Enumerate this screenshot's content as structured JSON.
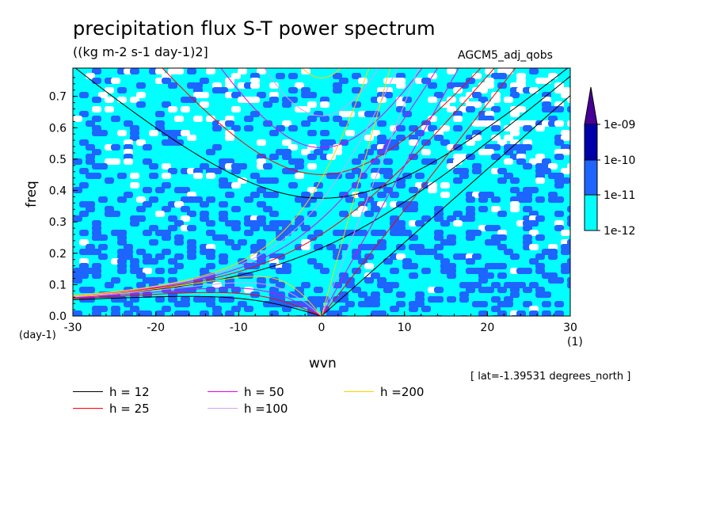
{
  "chart_data": {
    "type": "heatmap",
    "title": "precipitation flux S-T power spectrum",
    "units": "((kg m-2 s-1 day-1)2]",
    "experiment": "AGCM5_adj_qobs",
    "xlabel": "wvn",
    "ylabel": "freq",
    "x_unit": "(1)",
    "y_unit": "(day-1)",
    "xlim": [
      -30,
      30
    ],
    "ylim": [
      0,
      0.79
    ],
    "xticks": [
      "-30",
      "-20",
      "-10",
      "0",
      "10",
      "20",
      "30"
    ],
    "yticks": [
      "0.0",
      "0.1",
      "0.2",
      "0.3",
      "0.4",
      "0.5",
      "0.6",
      "0.7"
    ],
    "colorbar": {
      "labels": [
        "1e-12",
        "1e-11",
        "1e-10",
        "1e-09"
      ],
      "colors": [
        "#ffffff",
        "#00ffff",
        "#1e64ff",
        "#0000aa",
        "#460096"
      ]
    },
    "dispersion_legend": [
      {
        "label": "h = 12",
        "h": 12,
        "color": "#000000"
      },
      {
        "label": "h = 25",
        "h": 25,
        "color": "#ff0000"
      },
      {
        "label": "h = 50",
        "h": 50,
        "color": "#e600e6"
      },
      {
        "label": "h =100",
        "h": 100,
        "color": "#d2a0ff"
      },
      {
        "label": "h =200",
        "h": 200,
        "color": "#ffd200"
      }
    ],
    "note": "[ lat=-1.39531 degrees_north ]"
  }
}
